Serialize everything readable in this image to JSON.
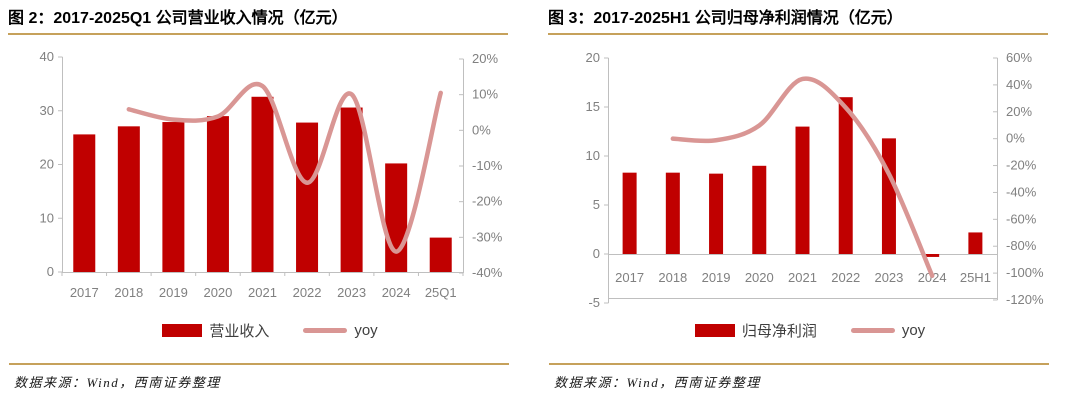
{
  "colors": {
    "bar": "#c00000",
    "line": "#d99694",
    "gold_rule": "#c6a15b",
    "axis_text": "#808080",
    "axis_line": "#bfbfbf",
    "legend_text": "#3f3f3f"
  },
  "chart_data": [
    {
      "type": "bar",
      "subtype": "combo-bar-line",
      "title": "图 2：2017-2025Q1 公司营业收入情况（亿元）",
      "categories": [
        "2017",
        "2018",
        "2019",
        "2020",
        "2021",
        "2022",
        "2023",
        "2024",
        "25Q1"
      ],
      "series": [
        {
          "name": "营业收入",
          "type": "bar",
          "axis": "left",
          "values": [
            25.6,
            27.1,
            27.9,
            29.0,
            32.6,
            27.8,
            30.6,
            20.2,
            6.4
          ]
        },
        {
          "name": "yoy",
          "type": "line",
          "axis": "right",
          "values": [
            null,
            5.9,
            3.0,
            3.9,
            12.4,
            -14.7,
            10.1,
            -34.0,
            10.5
          ]
        }
      ],
      "left_axis": {
        "min": 0,
        "max": 40,
        "tick_values": [
          0,
          10,
          20,
          30,
          40
        ],
        "tick_labels": [
          "0",
          "10",
          "20",
          "30",
          "40"
        ]
      },
      "right_axis": {
        "min": -40,
        "max": 20,
        "tick_values": [
          20,
          10,
          0,
          -10,
          -20,
          -30,
          -40
        ],
        "tick_labels": [
          "20%",
          "10%",
          "0%",
          "-10%",
          "-20%",
          "-30%",
          "-40%"
        ]
      },
      "legend": [
        {
          "label": "营业收入",
          "swatch": "bar"
        },
        {
          "label": "yoy",
          "swatch": "line"
        }
      ],
      "grid": "off",
      "legend_position": "bottom",
      "source": "数据来源：Wind，西南证券整理"
    },
    {
      "type": "bar",
      "subtype": "combo-bar-line",
      "title": "图 3：2017-2025H1 公司归母净利润情况（亿元）",
      "categories": [
        "2017",
        "2018",
        "2019",
        "2020",
        "2021",
        "2022",
        "2023",
        "2024",
        "25H1"
      ],
      "series": [
        {
          "name": "归母净利润",
          "type": "bar",
          "axis": "left",
          "values": [
            8.3,
            8.3,
            8.2,
            9.0,
            13.0,
            16.0,
            11.8,
            -0.3,
            2.2
          ]
        },
        {
          "name": "yoy",
          "type": "line",
          "axis": "right",
          "values": [
            null,
            0.0,
            -1.2,
            9.8,
            44.4,
            23.1,
            -26.3,
            -102.0,
            null
          ]
        }
      ],
      "left_axis": {
        "min": -5,
        "max": 20,
        "tick_values": [
          20,
          15,
          10,
          5,
          0,
          -5
        ],
        "tick_labels": [
          "20",
          "15",
          "10",
          "5",
          "0",
          "-5"
        ]
      },
      "right_axis": {
        "min": -120,
        "max": 60,
        "tick_values": [
          60,
          40,
          20,
          0,
          -20,
          -40,
          -60,
          -80,
          -100,
          -120
        ],
        "tick_labels": [
          "60%",
          "40%",
          "20%",
          "0%",
          "-20%",
          "-40%",
          "-60%",
          "-80%",
          "-100%",
          "-120%"
        ]
      },
      "legend": [
        {
          "label": "归母净利润",
          "swatch": "bar"
        },
        {
          "label": "yoy",
          "swatch": "line"
        }
      ],
      "grid": "off",
      "legend_position": "bottom",
      "source": "数据来源：Wind，西南证券整理"
    }
  ]
}
